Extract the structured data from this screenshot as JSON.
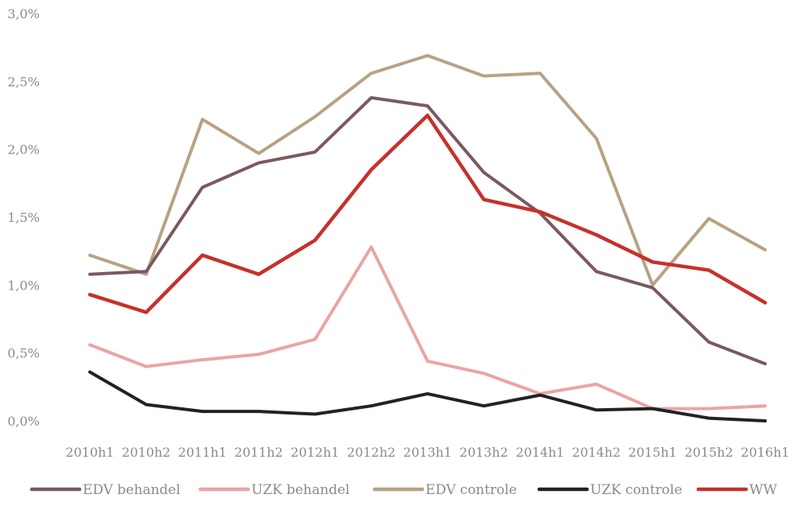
{
  "chart_data": {
    "type": "line",
    "title": "",
    "xlabel": "",
    "ylabel": "",
    "categories": [
      "2010h1",
      "2010h2",
      "2011h1",
      "2011h2",
      "2012h1",
      "2012h2",
      "2013h1",
      "2013h2",
      "2014h1",
      "2014h2",
      "2015h1",
      "2015h2",
      "2016h1"
    ],
    "ylim": [
      0,
      3.0
    ],
    "yticks": [
      0,
      0.5,
      1.0,
      1.5,
      2.0,
      2.5,
      3.0
    ],
    "ytick_labels": [
      "0,0%",
      "0,5%",
      "1,0%",
      "1,5%",
      "2,0%",
      "2,5%",
      "3,0%"
    ],
    "grid": false,
    "legend_position": "bottom",
    "series": [
      {
        "name": "EDV behandel",
        "color": "#7a5a5e",
        "values": [
          1.08,
          1.1,
          1.72,
          1.9,
          1.98,
          2.38,
          2.32,
          1.83,
          1.53,
          1.1,
          0.98,
          0.58,
          0.42
        ]
      },
      {
        "name": "UZK behandel",
        "color": "#eaa4a4",
        "values": [
          0.56,
          0.4,
          0.45,
          0.49,
          0.6,
          1.28,
          0.44,
          0.35,
          0.2,
          0.27,
          0.09,
          0.09,
          0.11
        ]
      },
      {
        "name": "EDV controle",
        "color": "#b8a285",
        "values": [
          1.22,
          1.08,
          2.22,
          1.97,
          2.24,
          2.56,
          2.69,
          2.54,
          2.56,
          2.08,
          1.0,
          1.49,
          1.26
        ]
      },
      {
        "name": "UZK controle",
        "color": "#222222",
        "values": [
          0.36,
          0.12,
          0.07,
          0.07,
          0.05,
          0.11,
          0.2,
          0.11,
          0.19,
          0.08,
          0.09,
          0.02,
          0.0
        ]
      },
      {
        "name": "WW",
        "color": "#c8302b",
        "values": [
          0.93,
          0.8,
          1.22,
          1.08,
          1.33,
          1.85,
          2.25,
          1.63,
          1.54,
          1.37,
          1.17,
          1.11,
          0.87
        ]
      }
    ]
  }
}
